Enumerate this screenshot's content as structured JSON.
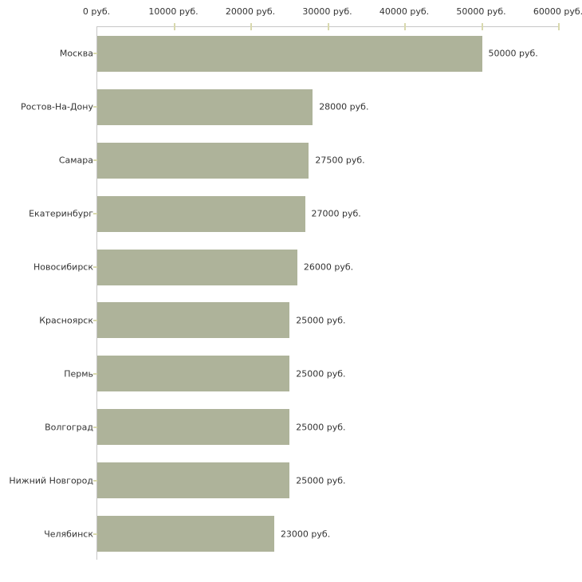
{
  "page": {
    "background": "#ffffff"
  },
  "chart_data": {
    "type": "bar",
    "orientation": "horizontal",
    "title": "",
    "categories": [
      "Москва",
      "Ростов-На-Дону",
      "Самара",
      "Екатеринбург",
      "Новосибирск",
      "Красноярск",
      "Пермь",
      "Волгоград",
      "Нижний Новгород",
      "Челябинск"
    ],
    "values": [
      50000,
      28000,
      27500,
      27000,
      26000,
      25000,
      25000,
      25000,
      25000,
      23000
    ],
    "value_labels": [
      "50000 руб.",
      "28000 руб.",
      "27500 руб.",
      "27000 руб.",
      "26000 руб.",
      "25000 руб.",
      "25000 руб.",
      "25000 руб.",
      "25000 руб.",
      "23000 руб."
    ],
    "xlabel": "",
    "ylabel": "",
    "xlim": [
      0,
      60000
    ],
    "x_ticks": [
      0,
      10000,
      20000,
      30000,
      40000,
      50000,
      60000
    ],
    "x_tick_labels": [
      "0 руб.",
      "10000 руб.",
      "20000 руб.",
      "30000 руб.",
      "40000 руб.",
      "50000 руб.",
      "60000 руб."
    ],
    "grid": false,
    "legend": false,
    "axis_position": "top-left",
    "colors": {
      "bar": "#aeb39a",
      "axis_line": "#c6c6c6",
      "tick_mark": "#d9d9ae",
      "text": "#333333"
    }
  }
}
